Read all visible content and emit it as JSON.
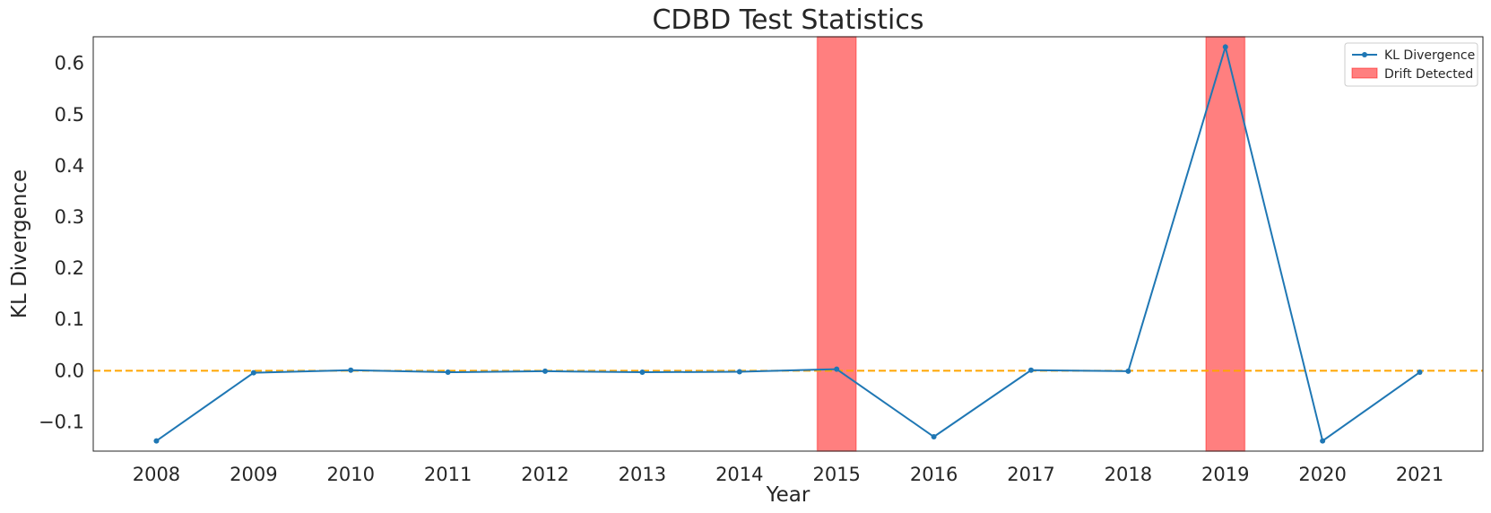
{
  "chart_data": {
    "type": "line",
    "title": "CDBD Test Statistics",
    "xlabel": "Year",
    "ylabel": "KL Divergence",
    "x": [
      2008,
      2009,
      2010,
      2011,
      2012,
      2013,
      2014,
      2015,
      2016,
      2017,
      2018,
      2019,
      2020,
      2021
    ],
    "x_tick_labels": [
      "2008",
      "2009",
      "2010",
      "2011",
      "2012",
      "2013",
      "2014",
      "2015",
      "2016",
      "2017",
      "2018",
      "2019",
      "2020",
      "2021"
    ],
    "xlim": [
      2007.35,
      2021.65
    ],
    "ylim": [
      -0.157,
      0.652
    ],
    "y_ticks": [
      -0.1,
      0.0,
      0.1,
      0.2,
      0.3,
      0.4,
      0.5,
      0.6
    ],
    "y_tick_labels": [
      "−0.1",
      "0.0",
      "0.1",
      "0.2",
      "0.3",
      "0.4",
      "0.5",
      "0.6"
    ],
    "grid": false,
    "legend_position": "top-right",
    "series": [
      {
        "name": "KL Divergence",
        "color": "#1f77b4",
        "marker": "circle",
        "values": [
          -0.137,
          -0.004,
          0.001,
          -0.003,
          -0.001,
          -0.003,
          -0.002,
          0.003,
          -0.129,
          0.001,
          -0.001,
          0.632,
          -0.137,
          -0.003
        ]
      }
    ],
    "reference_lines": [
      {
        "axis": "y",
        "value": 0.0,
        "style": "dashed",
        "color": "#ffa500"
      }
    ],
    "highlight_regions": [
      {
        "name": "Drift Detected",
        "x_start": 2014.8,
        "x_end": 2015.2,
        "color": "#ff0000",
        "alpha": 0.5
      },
      {
        "name": "Drift Detected",
        "x_start": 2018.8,
        "x_end": 2019.2,
        "color": "#ff0000",
        "alpha": 0.5
      }
    ],
    "legend": [
      {
        "label": "KL Divergence",
        "kind": "line-marker",
        "color": "#1f77b4"
      },
      {
        "label": "Drift Detected",
        "kind": "patch",
        "color": "#ff0000"
      }
    ]
  }
}
